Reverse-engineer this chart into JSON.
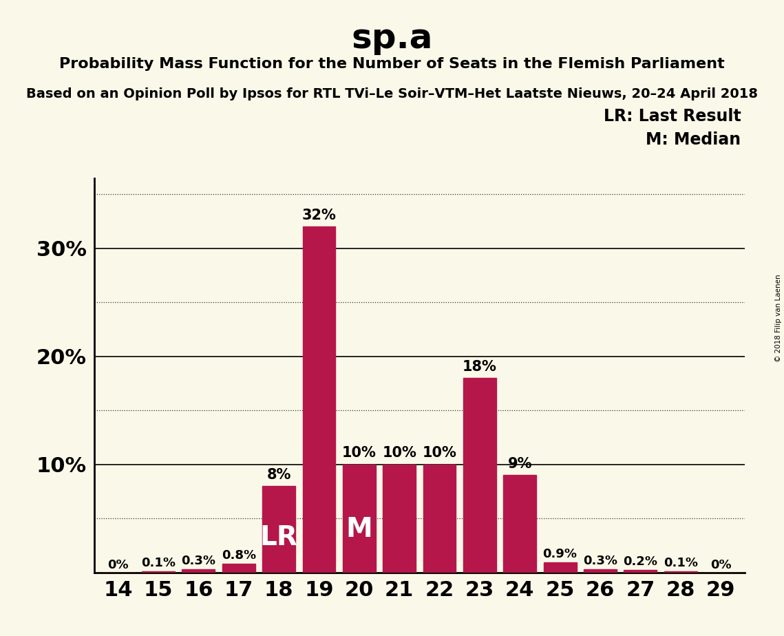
{
  "title": "sp.a",
  "subtitle": "Probability Mass Function for the Number of Seats in the Flemish Parliament",
  "subsubtitle": "Based on an Opinion Poll by Ipsos for RTL TVi–Le Soir–VTM–Het Laatste Nieuws, 20–24 April 2018",
  "copyright": "© 2018 Filip van Laenen",
  "seats": [
    14,
    15,
    16,
    17,
    18,
    19,
    20,
    21,
    22,
    23,
    24,
    25,
    26,
    27,
    28,
    29
  ],
  "probabilities": [
    0.0,
    0.001,
    0.003,
    0.008,
    0.08,
    0.32,
    0.1,
    0.1,
    0.1,
    0.18,
    0.09,
    0.009,
    0.003,
    0.002,
    0.001,
    0.0
  ],
  "bar_labels": [
    "0%",
    "0.1%",
    "0.3%",
    "0.8%",
    "8%",
    "32%",
    "10%",
    "10%",
    "10%",
    "18%",
    "9%",
    "0.9%",
    "0.3%",
    "0.2%",
    "0.1%",
    "0%"
  ],
  "bar_color": "#b5174b",
  "background_color": "#faf8e8",
  "lr_seat": 18,
  "median_seat": 20,
  "solid_yticks": [
    0.1,
    0.2,
    0.3
  ],
  "dotted_yticks": [
    0.05,
    0.15,
    0.25,
    0.35
  ],
  "ytick_positions": [
    0.1,
    0.2,
    0.3
  ],
  "ytick_labels": [
    "10%",
    "20%",
    "30%"
  ],
  "ylim": [
    0,
    0.365
  ],
  "legend_lr": "LR: Last Result",
  "legend_m": "M: Median"
}
